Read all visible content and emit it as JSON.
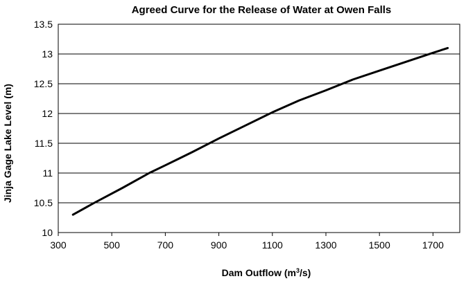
{
  "chart_data": {
    "type": "line",
    "title": "Agreed Curve for the Release of Water at Owen Falls",
    "xlabel": "Dam Outflow (m³/s)",
    "xlabel_parts": {
      "before": "Dam Outflow (m",
      "superscript": "3",
      "after": "/s)"
    },
    "ylabel": "Jinja Gage Lake Level (m)",
    "xlim": [
      300,
      1800
    ],
    "ylim": [
      10,
      13.5
    ],
    "x_ticks": [
      300,
      500,
      700,
      900,
      1100,
      1300,
      1500,
      1700
    ],
    "y_ticks": [
      10,
      10.5,
      11,
      11.5,
      12,
      12.5,
      13,
      13.5
    ],
    "grid": "horizontal",
    "legend": "none",
    "series": [
      {
        "color": "#000000",
        "x": [
          355,
          435,
          540,
          640,
          700,
          800,
          900,
          1000,
          1100,
          1200,
          1300,
          1400,
          1500,
          1600,
          1700,
          1755
        ],
        "y": [
          10.3,
          10.5,
          10.75,
          11.0,
          11.13,
          11.35,
          11.58,
          11.8,
          12.02,
          12.22,
          12.39,
          12.57,
          12.72,
          12.87,
          13.02,
          13.1
        ]
      }
    ]
  }
}
